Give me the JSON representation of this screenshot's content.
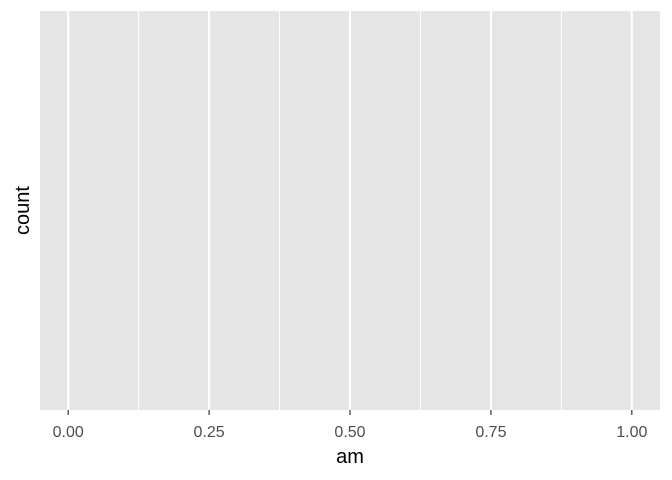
{
  "chart_data": {
    "type": "bar",
    "title": "",
    "xlabel": "am",
    "ylabel": "count",
    "xlim": [
      -0.05,
      1.05
    ],
    "x_ticks": [
      0.0,
      0.25,
      0.5,
      0.75,
      1.0
    ],
    "x_tick_labels": [
      "0.00",
      "0.25",
      "0.50",
      "0.75",
      "1.00"
    ],
    "x_minor_ticks": [
      0.125,
      0.375,
      0.625,
      0.875
    ],
    "y_ticks": [],
    "series": [],
    "grid": true,
    "panel_background": "#e5e5e5",
    "grid_color": "#ffffff"
  }
}
